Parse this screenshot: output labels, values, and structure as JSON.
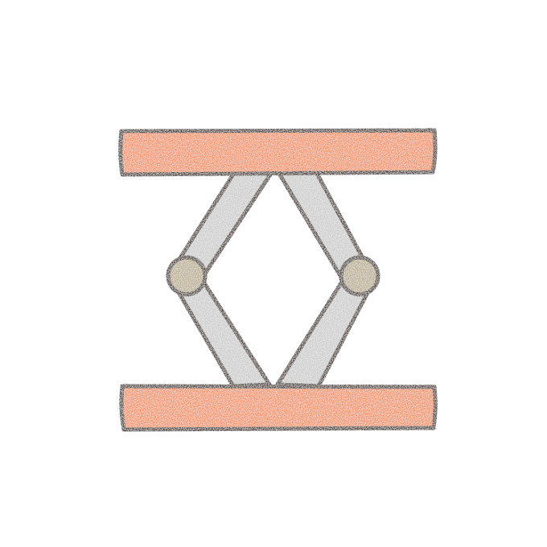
{
  "illustration": {
    "subject": "scissor-jack",
    "style": "crayon-doodle",
    "colors": {
      "plate_fill": "#f28c5a",
      "outline": "#3a2a22",
      "arm_fill": "#c9c9c9",
      "joint_fill": "#b6a98a",
      "background": "#ffffff"
    },
    "parts": [
      "top-plate",
      "bottom-plate",
      "left-arm-upper",
      "left-arm-lower",
      "right-arm-upper",
      "right-arm-lower",
      "left-joint",
      "right-joint"
    ]
  }
}
